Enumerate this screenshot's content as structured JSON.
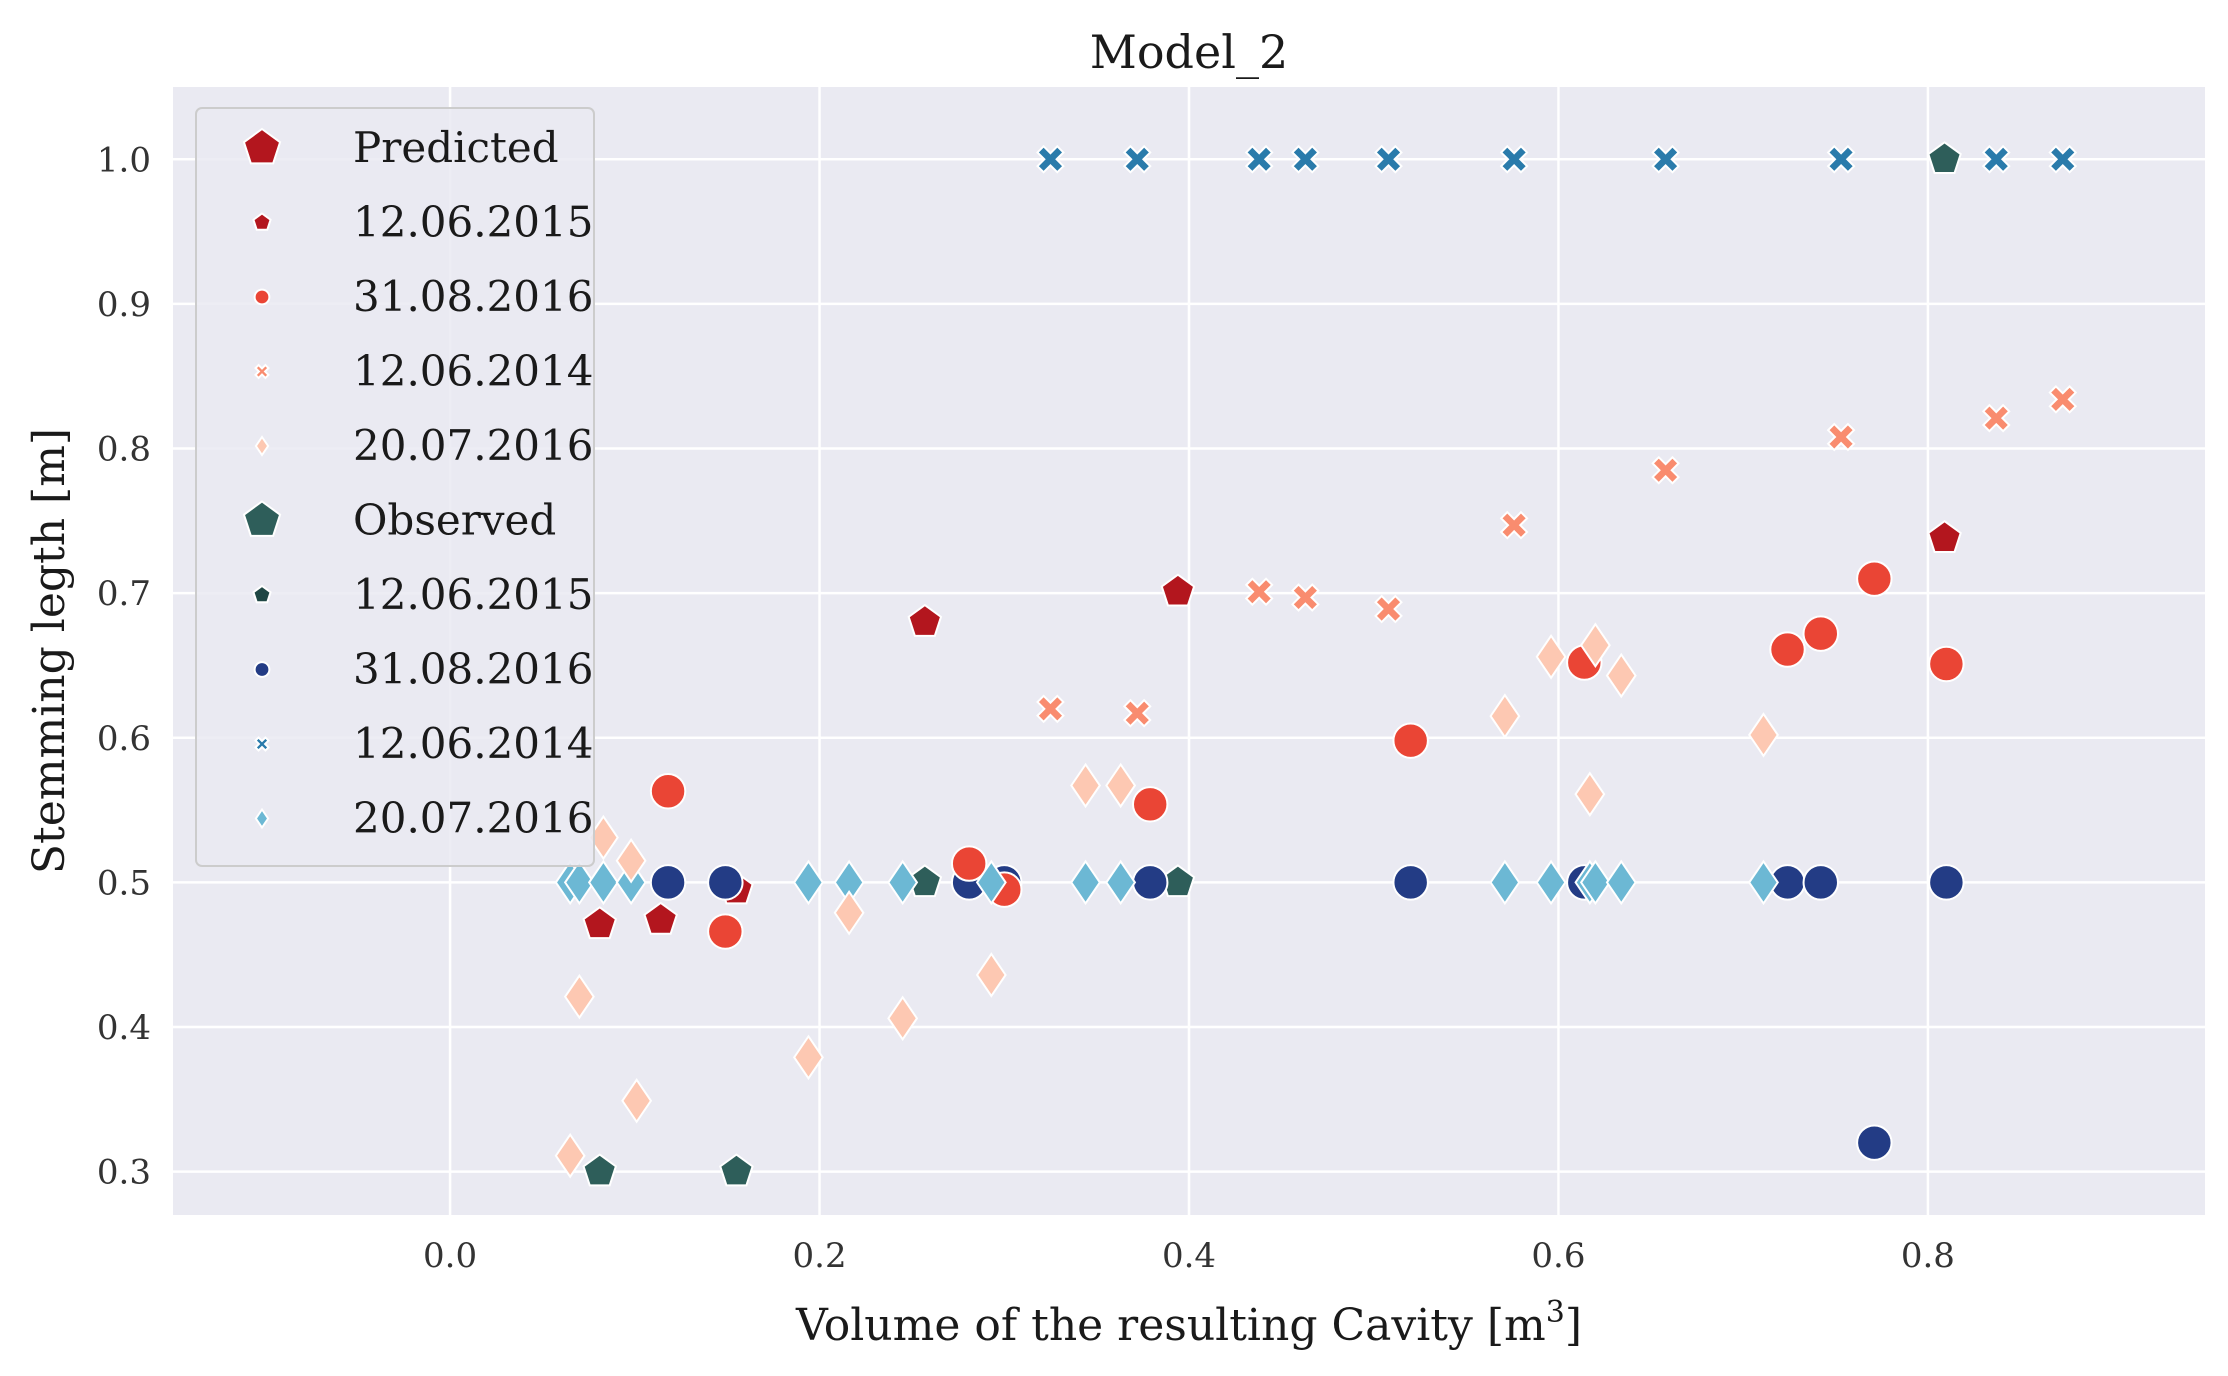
{
  "chart_data": {
    "type": "scatter",
    "title": "Model_2",
    "xlabel": "Volume of the resulting Cavity [m",
    "xlabel_sup": "3",
    "xlabel_end": "]",
    "ylabel": "Stemming legth [m]",
    "xlim": [
      -0.15,
      0.95
    ],
    "ylim": [
      0.27,
      1.05
    ],
    "xticks": [
      0.0,
      0.2,
      0.4,
      0.6,
      0.8
    ],
    "xtick_labels": [
      "0.0",
      "0.2",
      "0.4",
      "0.6",
      "0.8"
    ],
    "yticks": [
      0.3,
      0.4,
      0.5,
      0.6,
      0.7,
      0.8,
      0.9,
      1.0
    ],
    "ytick_labels": [
      "0.3",
      "0.4",
      "0.5",
      "0.6",
      "0.7",
      "0.8",
      "0.9",
      "1.0"
    ],
    "grid": true,
    "legend_position": "top-left",
    "legend": [
      {
        "label": "Predicted",
        "marker": "pentagon",
        "color": "#b3161e",
        "size": "large"
      },
      {
        "label": "12.06.2015",
        "marker": "pentagon",
        "color": "#b3161e",
        "size": "small"
      },
      {
        "label": "31.08.2016",
        "marker": "circle",
        "color": "#ea4535",
        "size": "small"
      },
      {
        "label": "12.06.2014",
        "marker": "x",
        "color": "#f98c6f",
        "size": "small"
      },
      {
        "label": "20.07.2016",
        "marker": "diamond",
        "color": "#fdc8b2",
        "size": "small"
      },
      {
        "label": "Observed",
        "marker": "pentagon",
        "color": "#2e5e5a",
        "size": "large"
      },
      {
        "label": "12.06.2015",
        "marker": "pentagon",
        "color": "#1f4744",
        "size": "small"
      },
      {
        "label": "31.08.2016",
        "marker": "circle",
        "color": "#233c85",
        "size": "small"
      },
      {
        "label": "12.06.2014",
        "marker": "x",
        "color": "#2a7bab",
        "size": "small"
      },
      {
        "label": "20.07.2016",
        "marker": "diamond",
        "color": "#6cb8d4",
        "size": "small"
      }
    ],
    "series": [
      {
        "name": "Observed 12.06.2015",
        "marker": "pentagon",
        "color": "#2e5e5a",
        "x": [
          0.081,
          0.155,
          0.257,
          0.394,
          0.809
        ],
        "y": [
          0.3,
          0.3,
          0.5,
          0.5,
          1.0
        ]
      },
      {
        "name": "Predicted 12.06.2015",
        "marker": "pentagon",
        "color": "#b3161e",
        "x": [
          0.081,
          0.114,
          0.155,
          0.257,
          0.394,
          0.809
        ],
        "y": [
          0.471,
          0.474,
          0.495,
          0.68,
          0.701,
          0.738
        ]
      },
      {
        "name": "Observed 12.06.2014",
        "marker": "x",
        "color": "#2a7bab",
        "x": [
          0.325,
          0.372,
          0.438,
          0.463,
          0.508,
          0.576,
          0.658,
          0.753,
          0.837,
          0.873
        ],
        "y": [
          1.0,
          1.0,
          1.0,
          1.0,
          1.0,
          1.0,
          1.0,
          1.0,
          1.0,
          1.0
        ]
      },
      {
        "name": "Predicted 12.06.2014",
        "marker": "x",
        "color": "#f98c6f",
        "x": [
          0.325,
          0.372,
          0.438,
          0.463,
          0.508,
          0.576,
          0.658,
          0.753,
          0.837,
          0.873
        ],
        "y": [
          0.62,
          0.617,
          0.701,
          0.697,
          0.689,
          0.747,
          0.785,
          0.808,
          0.821,
          0.834
        ]
      },
      {
        "name": "Observed 31.08.2016",
        "marker": "circle",
        "color": "#233c85",
        "x": [
          0.118,
          0.149,
          0.281,
          0.3,
          0.379,
          0.52,
          0.614,
          0.724,
          0.742,
          0.771,
          0.81
        ],
        "y": [
          0.5,
          0.5,
          0.5,
          0.5,
          0.5,
          0.5,
          0.5,
          0.5,
          0.5,
          0.32,
          0.5
        ]
      },
      {
        "name": "Predicted 31.08.2016",
        "marker": "circle",
        "color": "#ea4535",
        "x": [
          0.118,
          0.149,
          0.281,
          0.3,
          0.379,
          0.52,
          0.614,
          0.724,
          0.742,
          0.771,
          0.81
        ],
        "y": [
          0.563,
          0.466,
          0.513,
          0.495,
          0.554,
          0.598,
          0.652,
          0.661,
          0.672,
          0.71,
          0.651
        ]
      },
      {
        "name": "Observed 20.07.2016",
        "marker": "diamond",
        "color": "#6cb8d4",
        "x": [
          0.065,
          0.07,
          0.083,
          0.098,
          0.194,
          0.216,
          0.245,
          0.293,
          0.344,
          0.363,
          0.571,
          0.596,
          0.617,
          0.62,
          0.634,
          0.711
        ],
        "y": [
          0.5,
          0.5,
          0.5,
          0.5,
          0.5,
          0.5,
          0.5,
          0.5,
          0.5,
          0.5,
          0.5,
          0.5,
          0.5,
          0.5,
          0.5,
          0.5
        ]
      },
      {
        "name": "Predicted 20.07.2016",
        "marker": "diamond",
        "color": "#fdc8b2",
        "x": [
          0.065,
          0.07,
          0.083,
          0.098,
          0.101,
          0.194,
          0.216,
          0.245,
          0.293,
          0.344,
          0.363,
          0.571,
          0.596,
          0.617,
          0.62,
          0.634,
          0.711
        ],
        "y": [
          0.311,
          0.421,
          0.531,
          0.515,
          0.349,
          0.379,
          0.479,
          0.406,
          0.436,
          0.567,
          0.567,
          0.615,
          0.656,
          0.561,
          0.664,
          0.643,
          0.602
        ]
      }
    ]
  }
}
